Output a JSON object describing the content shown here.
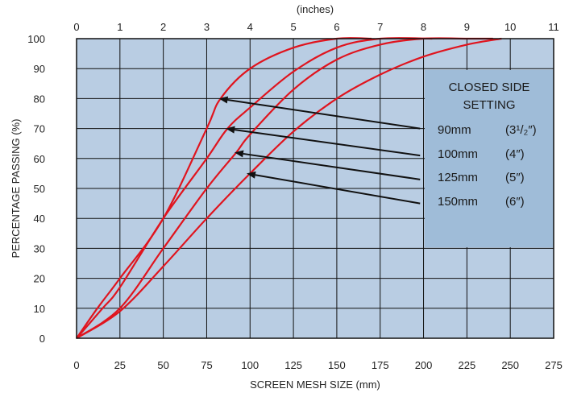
{
  "chart_data": {
    "type": "line",
    "xlabel": "SCREEN MESH SIZE (mm)",
    "ylabel": "PERCENTAGE PASSING (%)",
    "top_axis_label": "(inches)",
    "xlim": [
      0,
      275
    ],
    "ylim": [
      0,
      100
    ],
    "x_ticks": [
      "0",
      "25",
      "50",
      "75",
      "100",
      "125",
      "150",
      "175",
      "200",
      "225",
      "250",
      "275"
    ],
    "top_ticks": [
      "0",
      "1",
      "2",
      "3",
      "4",
      "5",
      "6",
      "7",
      "8",
      "9",
      "10",
      "11"
    ],
    "y_ticks": [
      "0",
      "10",
      "20",
      "30",
      "40",
      "50",
      "60",
      "70",
      "80",
      "90",
      "100"
    ],
    "grid": true,
    "colors": {
      "plot_background": "#b9cde3",
      "grid": "#111111",
      "curve": "#e0141e",
      "legend_background": "#9fbcd8",
      "arrow": "#111111"
    },
    "legend_title": [
      "CLOSED SIDE",
      "SETTING"
    ],
    "series": [
      {
        "name": "90mm",
        "inch_label": "(3¹/₂″)",
        "x": [
          0,
          12,
          25,
          50,
          75,
          83,
          100,
          125,
          150,
          170
        ],
        "y": [
          0,
          10,
          20,
          40,
          70,
          80,
          90,
          97,
          100,
          100
        ]
      },
      {
        "name": "100mm",
        "inch_label": "(4″)",
        "x": [
          0,
          15,
          25,
          50,
          75,
          87,
          100,
          125,
          150,
          175,
          205
        ],
        "y": [
          0,
          10,
          17,
          40,
          60,
          70,
          77,
          89,
          97,
          100,
          100
        ]
      },
      {
        "name": "125mm",
        "inch_label": "(5″)",
        "x": [
          0,
          25,
          50,
          75,
          92,
          100,
          125,
          150,
          175,
          200,
          225,
          240
        ],
        "y": [
          0,
          10,
          30,
          50,
          62,
          68,
          83,
          93,
          98,
          100,
          100,
          100
        ]
      },
      {
        "name": "150mm",
        "inch_label": "(6″)",
        "x": [
          0,
          25,
          50,
          75,
          100,
          125,
          150,
          175,
          200,
          225,
          245
        ],
        "y": [
          0,
          9,
          24,
          40,
          55,
          69,
          80,
          88,
          94,
          98,
          100
        ]
      }
    ],
    "arrows": [
      {
        "from": [
          198,
          70
        ],
        "to": [
          82,
          80
        ]
      },
      {
        "from": [
          198,
          61
        ],
        "to": [
          86,
          70
        ]
      },
      {
        "from": [
          198,
          53
        ],
        "to": [
          91,
          62
        ]
      },
      {
        "from": [
          198,
          45
        ],
        "to": [
          98,
          55
        ]
      }
    ]
  }
}
